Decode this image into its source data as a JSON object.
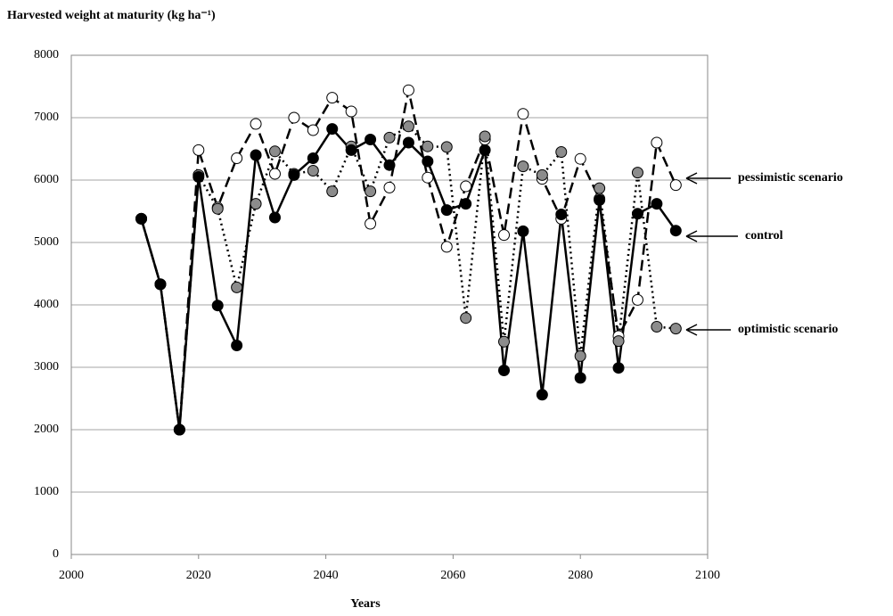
{
  "chart_data": {
    "type": "line",
    "title": "Harvested weight at maturity (kg ha⁻¹)",
    "xlabel": "Years",
    "x": [
      2011,
      2014,
      2017,
      2020,
      2023,
      2026,
      2029,
      2032,
      2035,
      2038,
      2041,
      2044,
      2047,
      2050,
      2053,
      2056,
      2059,
      2062,
      2065,
      2068,
      2071,
      2074,
      2077,
      2080,
      2083,
      2086,
      2089,
      2092,
      2095
    ],
    "series": [
      {
        "name": "pessimistic scenario",
        "color": "#000000",
        "marker_color": "#ffffff",
        "linestyle": "dashed",
        "values": [
          5380,
          4330,
          2000,
          6480,
          5560,
          6350,
          6900,
          6100,
          7000,
          6800,
          7320,
          7100,
          5300,
          5880,
          7440,
          6040,
          4930,
          5900,
          6650,
          5120,
          7060,
          6020,
          5380,
          6340,
          5700,
          3500,
          4080,
          6600,
          5920
        ]
      },
      {
        "name": "optimistic scenario",
        "color": "#000000",
        "marker_color": "#8c8c8c",
        "linestyle": "dotted",
        "values": [
          5380,
          4330,
          2000,
          6080,
          5540,
          4280,
          5620,
          6460,
          6100,
          6150,
          5820,
          6540,
          5820,
          6680,
          6860,
          6540,
          6530,
          3790,
          6700,
          3410,
          6220,
          6080,
          6450,
          3180,
          5870,
          3420,
          6120,
          3650,
          3620
        ]
      },
      {
        "name": "control",
        "color": "#000000",
        "marker_color": "#000000",
        "linestyle": "solid",
        "values": [
          5380,
          4330,
          2000,
          6050,
          3990,
          3350,
          6400,
          5400,
          6080,
          6350,
          6820,
          6480,
          6650,
          6240,
          6600,
          6300,
          5520,
          5620,
          6480,
          2950,
          5180,
          2560,
          5450,
          2830,
          5680,
          2990,
          5460,
          5620,
          5190
        ]
      }
    ],
    "xlim": [
      2000,
      2100
    ],
    "xticks": [
      2000,
      2020,
      2040,
      2060,
      2080,
      2100
    ],
    "ylim": [
      0,
      8000
    ],
    "yticks": [
      0,
      1000,
      2000,
      3000,
      4000,
      5000,
      6000,
      7000,
      8000
    ],
    "grid": true
  }
}
